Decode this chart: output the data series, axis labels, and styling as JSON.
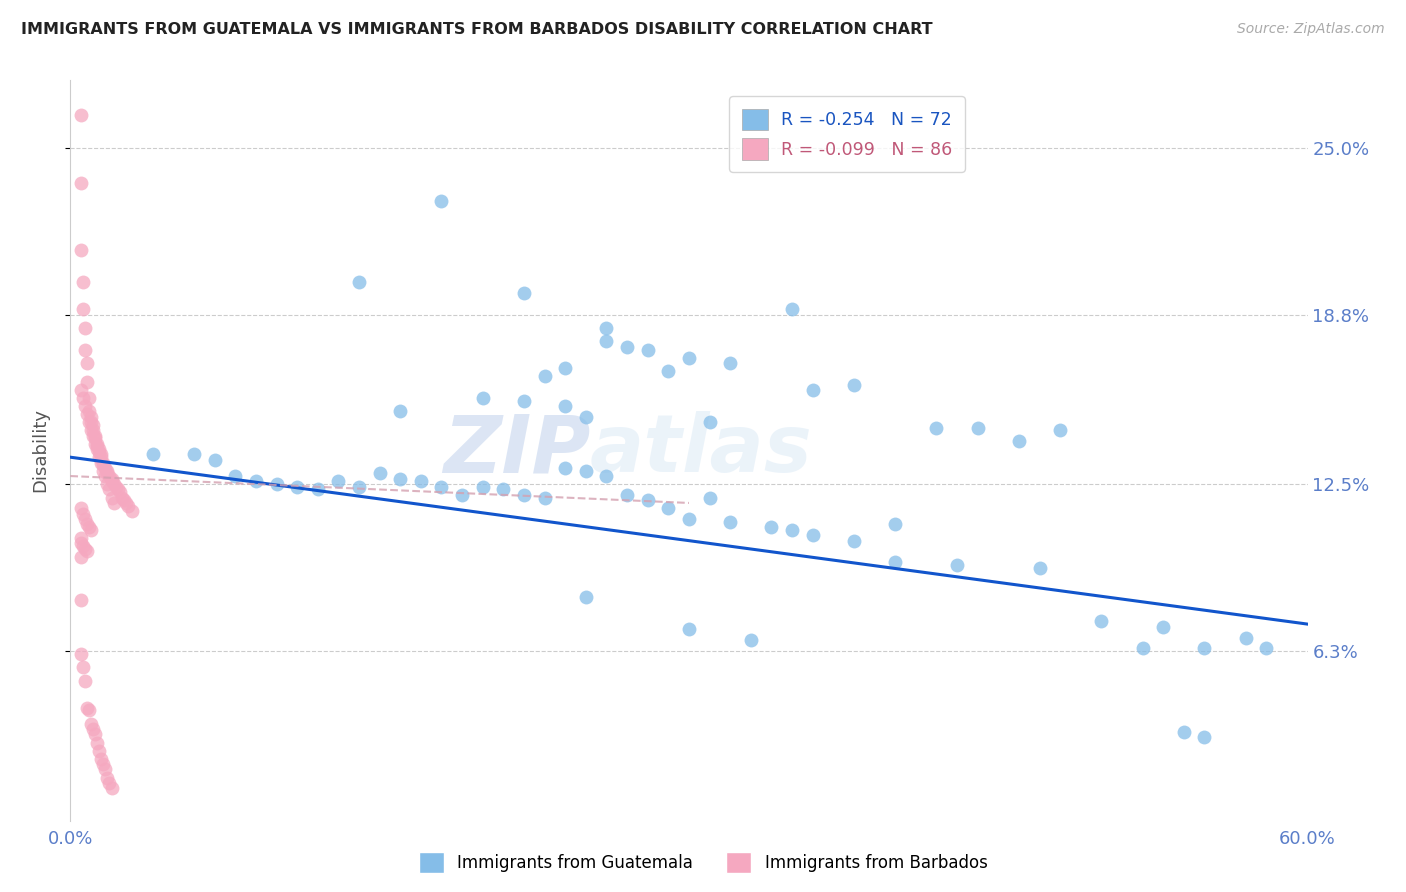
{
  "title": "IMMIGRANTS FROM GUATEMALA VS IMMIGRANTS FROM BARBADOS DISABILITY CORRELATION CHART",
  "source": "Source: ZipAtlas.com",
  "ylabel": "Disability",
  "ytick_labels": [
    "25.0%",
    "18.8%",
    "12.5%",
    "6.3%"
  ],
  "ytick_values": [
    0.25,
    0.188,
    0.125,
    0.063
  ],
  "xlim": [
    0.0,
    0.6
  ],
  "ylim": [
    0.0,
    0.275
  ],
  "legend_blue_r": "-0.254",
  "legend_blue_n": "72",
  "legend_pink_r": "-0.099",
  "legend_pink_n": "86",
  "blue_color": "#85bde8",
  "pink_color": "#f5a8c0",
  "line_blue_color": "#1155cc",
  "line_pink_color": "#d4a0b0",
  "watermark_zip": "ZIP",
  "watermark_atlas": "atlas",
  "blue_scatter_x": [
    0.18,
    0.22,
    0.14,
    0.26,
    0.35,
    0.28,
    0.24,
    0.3,
    0.32,
    0.38,
    0.22,
    0.24,
    0.25,
    0.29,
    0.31,
    0.26,
    0.27,
    0.23,
    0.2,
    0.16,
    0.07,
    0.08,
    0.09,
    0.1,
    0.11,
    0.12,
    0.13,
    0.14,
    0.15,
    0.16,
    0.17,
    0.18,
    0.19,
    0.2,
    0.21,
    0.22,
    0.23,
    0.24,
    0.25,
    0.26,
    0.27,
    0.28,
    0.29,
    0.3,
    0.31,
    0.32,
    0.34,
    0.35,
    0.36,
    0.38,
    0.4,
    0.43,
    0.44,
    0.46,
    0.47,
    0.5,
    0.52,
    0.55,
    0.58,
    0.04,
    0.06,
    0.25,
    0.3,
    0.33,
    0.4,
    0.54,
    0.55,
    0.42,
    0.36,
    0.48,
    0.53,
    0.57
  ],
  "blue_scatter_y": [
    0.23,
    0.196,
    0.2,
    0.183,
    0.19,
    0.175,
    0.168,
    0.172,
    0.17,
    0.162,
    0.156,
    0.154,
    0.15,
    0.167,
    0.148,
    0.178,
    0.176,
    0.165,
    0.157,
    0.152,
    0.134,
    0.128,
    0.126,
    0.125,
    0.124,
    0.123,
    0.126,
    0.124,
    0.129,
    0.127,
    0.126,
    0.124,
    0.121,
    0.124,
    0.123,
    0.121,
    0.12,
    0.131,
    0.13,
    0.128,
    0.121,
    0.119,
    0.116,
    0.112,
    0.12,
    0.111,
    0.109,
    0.108,
    0.106,
    0.104,
    0.096,
    0.095,
    0.146,
    0.141,
    0.094,
    0.074,
    0.064,
    0.064,
    0.064,
    0.136,
    0.136,
    0.083,
    0.071,
    0.067,
    0.11,
    0.033,
    0.031,
    0.146,
    0.16,
    0.145,
    0.072,
    0.068
  ],
  "pink_scatter_x": [
    0.005,
    0.005,
    0.005,
    0.006,
    0.006,
    0.007,
    0.007,
    0.008,
    0.008,
    0.009,
    0.009,
    0.01,
    0.01,
    0.011,
    0.011,
    0.012,
    0.012,
    0.013,
    0.013,
    0.014,
    0.014,
    0.015,
    0.015,
    0.016,
    0.016,
    0.017,
    0.018,
    0.018,
    0.019,
    0.02,
    0.02,
    0.021,
    0.022,
    0.023,
    0.024,
    0.025,
    0.026,
    0.027,
    0.028,
    0.03,
    0.005,
    0.006,
    0.007,
    0.008,
    0.009,
    0.01,
    0.005,
    0.005,
    0.006,
    0.007,
    0.008,
    0.009,
    0.01,
    0.011,
    0.012,
    0.013,
    0.014,
    0.015,
    0.016,
    0.017,
    0.018,
    0.019,
    0.02,
    0.005,
    0.005,
    0.006,
    0.007,
    0.008,
    0.005,
    0.005,
    0.006,
    0.007,
    0.008,
    0.009,
    0.01,
    0.011,
    0.012,
    0.013,
    0.014,
    0.015,
    0.016,
    0.017,
    0.018,
    0.019,
    0.02,
    0.021
  ],
  "pink_scatter_y": [
    0.262,
    0.237,
    0.212,
    0.2,
    0.19,
    0.183,
    0.175,
    0.17,
    0.163,
    0.157,
    0.152,
    0.15,
    0.148,
    0.147,
    0.145,
    0.143,
    0.142,
    0.14,
    0.139,
    0.138,
    0.137,
    0.136,
    0.135,
    0.133,
    0.132,
    0.131,
    0.13,
    0.129,
    0.128,
    0.127,
    0.126,
    0.125,
    0.124,
    0.123,
    0.122,
    0.12,
    0.119,
    0.118,
    0.117,
    0.115,
    0.116,
    0.114,
    0.112,
    0.11,
    0.109,
    0.108,
    0.082,
    0.062,
    0.057,
    0.052,
    0.042,
    0.041,
    0.036,
    0.034,
    0.032,
    0.029,
    0.026,
    0.023,
    0.021,
    0.019,
    0.016,
    0.014,
    0.012,
    0.105,
    0.103,
    0.102,
    0.101,
    0.1,
    0.098,
    0.16,
    0.157,
    0.154,
    0.151,
    0.148,
    0.145,
    0.143,
    0.14,
    0.138,
    0.135,
    0.133,
    0.13,
    0.128,
    0.125,
    0.123,
    0.12,
    0.118
  ],
  "blue_line_x": [
    0.0,
    0.6
  ],
  "blue_line_y": [
    0.135,
    0.073
  ],
  "pink_line_x": [
    0.0,
    0.3
  ],
  "pink_line_y": [
    0.128,
    0.118
  ]
}
